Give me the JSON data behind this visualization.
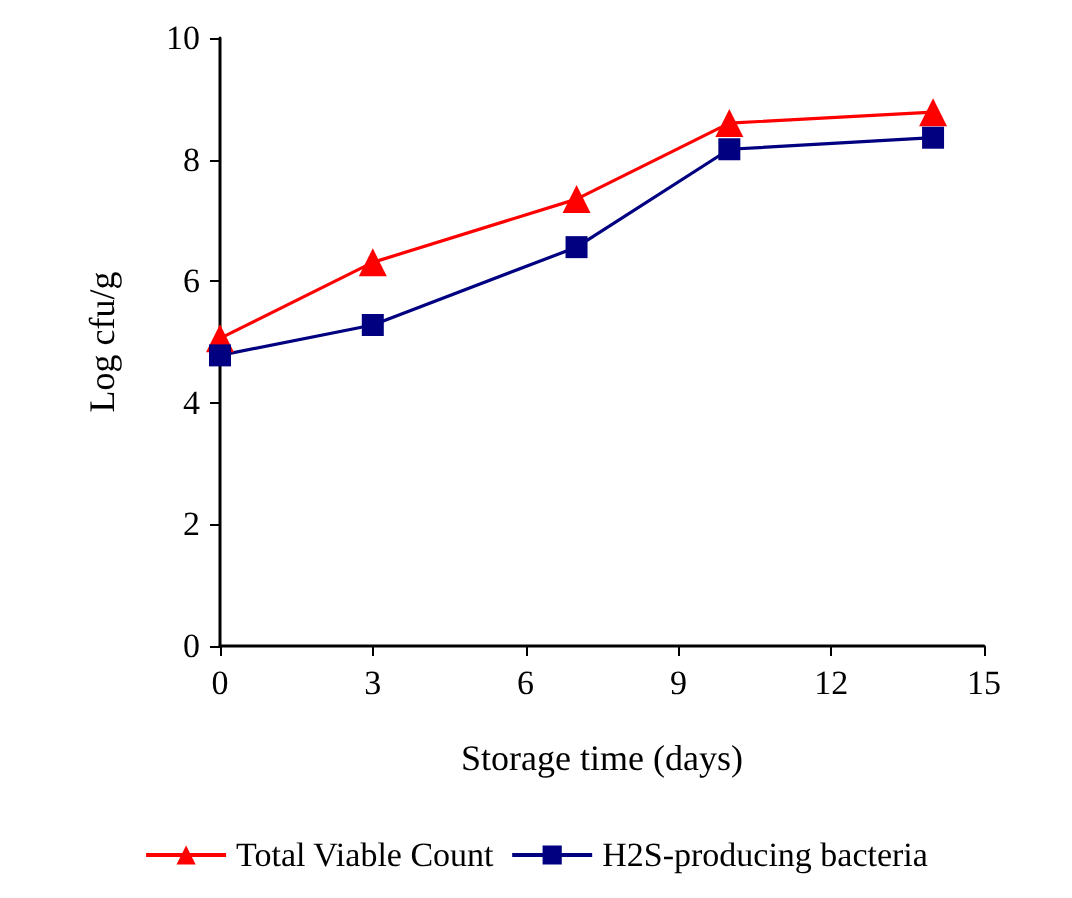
{
  "chart_data": {
    "type": "line",
    "xlabel": "Storage time (days)",
    "ylabel": "Log cfu/g",
    "x": [
      0,
      3,
      7,
      10,
      14
    ],
    "series": [
      {
        "name": "Total Viable Count",
        "color": "#ff0000",
        "marker": "triangle",
        "values": [
          5.06,
          6.31,
          7.35,
          8.6,
          8.78
        ]
      },
      {
        "name": "H2S-producing bacteria",
        "color": "#000080",
        "marker": "square",
        "values": [
          4.78,
          5.28,
          6.56,
          8.17,
          8.36
        ]
      }
    ],
    "xlim": [
      0,
      15
    ],
    "xticks": [
      0,
      3,
      6,
      9,
      12,
      15
    ],
    "ylim": [
      0,
      10
    ],
    "yticks": [
      0,
      2,
      4,
      6,
      8,
      10
    ],
    "grid": false,
    "legend": "bottom",
    "line_style": "solid"
  }
}
